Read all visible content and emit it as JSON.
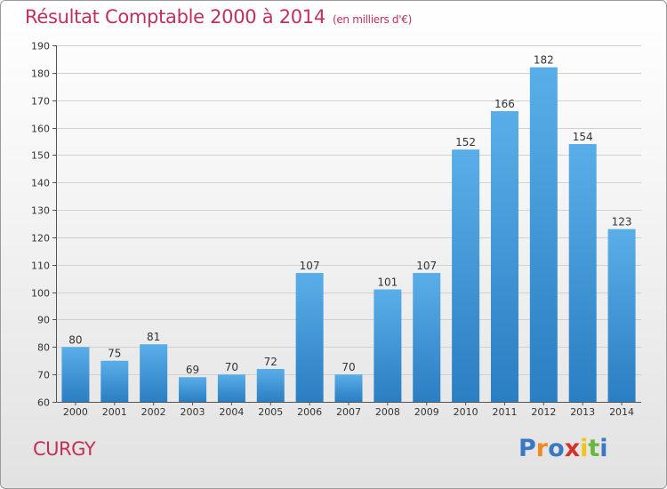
{
  "header": {
    "title": "Résultat Comptable 2000 à 2014",
    "subtitle": "(en milliers d'€)"
  },
  "footer": {
    "place": "CURGY",
    "logo": {
      "letters": [
        "P",
        "r",
        "o",
        "x",
        "i",
        "t",
        "i"
      ],
      "colors": [
        "#3a78c4",
        "#f08a1c",
        "#3a78c4",
        "#d2332a",
        "#f0c419",
        "#6bb63d",
        "#3a78c4"
      ]
    }
  },
  "chart_data": {
    "type": "bar",
    "categories": [
      "2000",
      "2001",
      "2002",
      "2003",
      "2004",
      "2005",
      "2006",
      "2007",
      "2008",
      "2009",
      "2010",
      "2011",
      "2012",
      "2013",
      "2014"
    ],
    "values": [
      80,
      75,
      81,
      69,
      70,
      72,
      107,
      70,
      101,
      107,
      152,
      166,
      182,
      154,
      123
    ],
    "title": "Résultat Comptable 2000 à 2014",
    "ylim": [
      60,
      190
    ],
    "yticks": [
      60,
      70,
      80,
      90,
      100,
      110,
      120,
      130,
      140,
      150,
      160,
      170,
      180,
      190
    ],
    "grid": true,
    "bar_color": "#3d94d6"
  }
}
